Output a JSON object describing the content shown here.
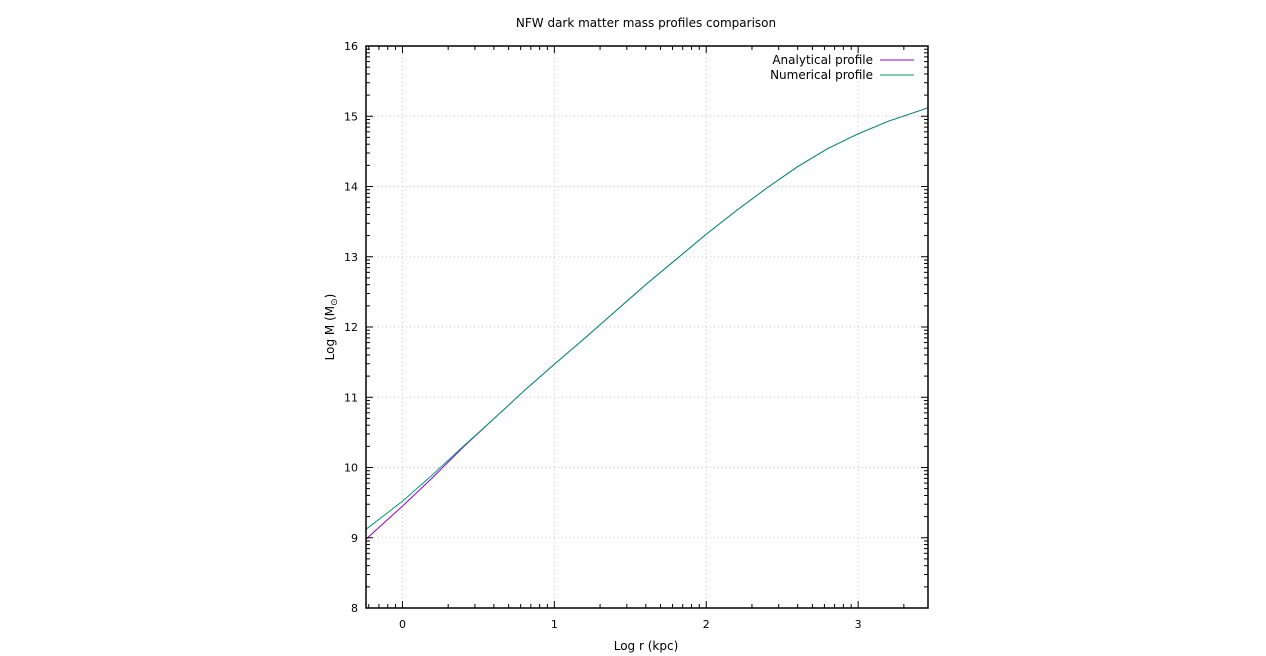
{
  "chart_data": {
    "type": "line",
    "title": "NFW dark matter mass profiles comparison",
    "xlabel": "Log r (kpc)",
    "ylabel_main": "Log M (M",
    "ylabel_sub": "⊙",
    "ylabel_close": ")",
    "xlim": [
      -0.24,
      3.46
    ],
    "ylim": [
      8,
      16
    ],
    "x_ticks": [
      0,
      1,
      2,
      3
    ],
    "x_tick_labels": [
      "0",
      "1",
      "2",
      "3"
    ],
    "y_ticks": [
      8,
      9,
      10,
      11,
      12,
      13,
      14,
      15,
      16
    ],
    "y_tick_labels": [
      "8",
      "9",
      "10",
      "11",
      "12",
      "13",
      "14",
      "15",
      "16"
    ],
    "grid": true,
    "legend_position": "top-right",
    "series": [
      {
        "name": "Analytical profile",
        "color": "#9400d3",
        "x": [
          -0.24,
          0.0,
          0.2,
          0.4,
          0.6,
          0.8,
          1.0,
          1.2,
          1.4,
          1.6,
          1.8,
          2.0,
          2.2,
          2.4,
          2.6,
          2.8,
          3.0,
          3.2,
          3.46
        ],
        "y": [
          8.98,
          9.45,
          9.86,
          10.29,
          10.69,
          11.09,
          11.47,
          11.84,
          12.22,
          12.6,
          12.96,
          13.32,
          13.66,
          13.98,
          14.28,
          14.54,
          14.75,
          14.93,
          15.12
        ]
      },
      {
        "name": "Numerical profile",
        "color": "#009e73",
        "x": [
          -0.24,
          0.0,
          0.2,
          0.4,
          0.6,
          0.8,
          1.0,
          1.2,
          1.4,
          1.6,
          1.8,
          2.0,
          2.2,
          2.4,
          2.6,
          2.8,
          3.0,
          3.2,
          3.46
        ],
        "y": [
          9.12,
          9.52,
          9.9,
          10.3,
          10.69,
          11.09,
          11.47,
          11.84,
          12.22,
          12.6,
          12.96,
          13.32,
          13.66,
          13.98,
          14.28,
          14.54,
          14.75,
          14.93,
          15.12
        ]
      }
    ]
  }
}
